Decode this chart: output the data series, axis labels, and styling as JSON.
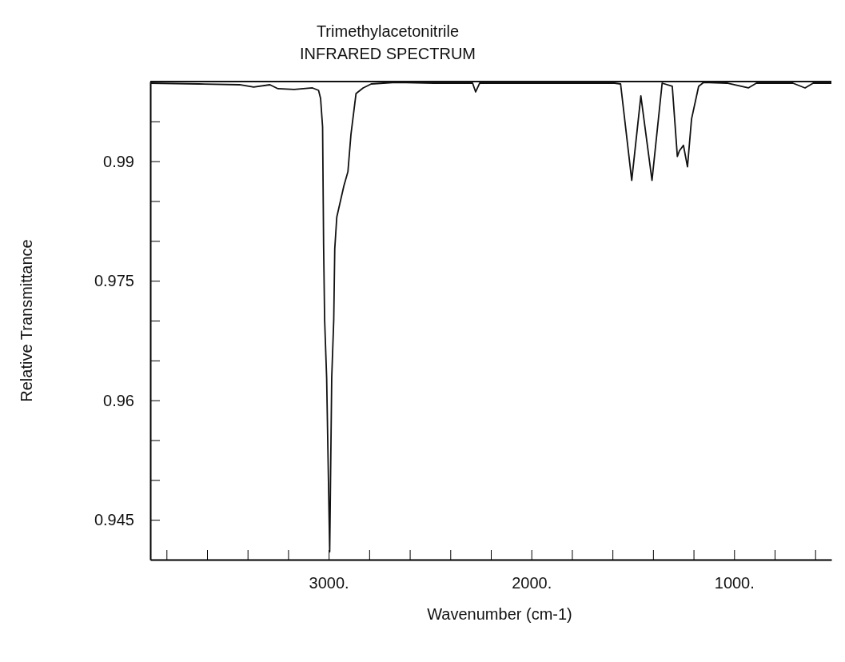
{
  "chart_data": {
    "type": "line",
    "title": "Trimethylacetonitrile",
    "subtitle": "INFRARED SPECTRUM",
    "xlabel": "Wavenumber (cm-1)",
    "ylabel": "Relative Transmittance",
    "xlim": [
      3880,
      520
    ],
    "ylim": [
      0.94,
      1.0
    ],
    "xticks": [
      {
        "value": 3800,
        "label": null
      },
      {
        "value": 3600,
        "label": null
      },
      {
        "value": 3400,
        "label": null
      },
      {
        "value": 3200,
        "label": null
      },
      {
        "value": 3000,
        "label": "3000."
      },
      {
        "value": 2800,
        "label": null
      },
      {
        "value": 2600,
        "label": null
      },
      {
        "value": 2400,
        "label": null
      },
      {
        "value": 2200,
        "label": null
      },
      {
        "value": 2000,
        "label": "2000."
      },
      {
        "value": 1800,
        "label": null
      },
      {
        "value": 1600,
        "label": null
      },
      {
        "value": 1400,
        "label": null
      },
      {
        "value": 1200,
        "label": null
      },
      {
        "value": 1000,
        "label": "1000."
      },
      {
        "value": 800,
        "label": null
      },
      {
        "value": 600,
        "label": null
      }
    ],
    "yticks": [
      {
        "value": 0.995,
        "label": null
      },
      0.99,
      {
        "value": 0.985,
        "label": null
      },
      {
        "value": 0.98,
        "label": null
      },
      0.975,
      {
        "value": 0.97,
        "label": null
      },
      {
        "value": 0.965,
        "label": null
      },
      0.96,
      {
        "value": 0.955,
        "label": null
      },
      {
        "value": 0.95,
        "label": null
      },
      0.945
    ],
    "grid": false,
    "marker": "none",
    "line_style": "solid",
    "series": [
      {
        "color": "#111111",
        "x": [
          3880,
          3640,
          3440,
          3370,
          3290,
          3250,
          3170,
          3080,
          3050,
          3040,
          3030,
          3025,
          3020,
          3010,
          2995,
          2985,
          2975,
          2970,
          2960,
          2925,
          2905,
          2890,
          2865,
          2830,
          2790,
          2670,
          2480,
          2360,
          2290,
          2275,
          2255,
          2090,
          1900,
          1590,
          1560,
          1505,
          1460,
          1405,
          1355,
          1305,
          1280,
          1270,
          1250,
          1230,
          1210,
          1175,
          1150,
          1035,
          930,
          890,
          710,
          650,
          610,
          520
        ],
        "values": [
          0.9998,
          0.9997,
          0.9996,
          0.9993,
          0.9996,
          0.9991,
          0.999,
          0.9992,
          0.9989,
          0.9979,
          0.9943,
          0.9793,
          0.9701,
          0.9628,
          0.941,
          0.9628,
          0.9701,
          0.979,
          0.983,
          0.9869,
          0.9887,
          0.9934,
          0.9985,
          0.9992,
          0.9997,
          0.9999,
          0.9998,
          0.9998,
          0.9998,
          0.9987,
          0.9998,
          0.9998,
          0.9998,
          0.9998,
          0.9997,
          0.9876,
          0.9982,
          0.9876,
          0.9998,
          0.9994,
          0.9906,
          0.9913,
          0.992,
          0.9893,
          0.9953,
          0.9994,
          0.9999,
          0.9998,
          0.9992,
          0.9998,
          0.9998,
          0.9992,
          0.9998,
          0.9998
        ]
      }
    ]
  }
}
